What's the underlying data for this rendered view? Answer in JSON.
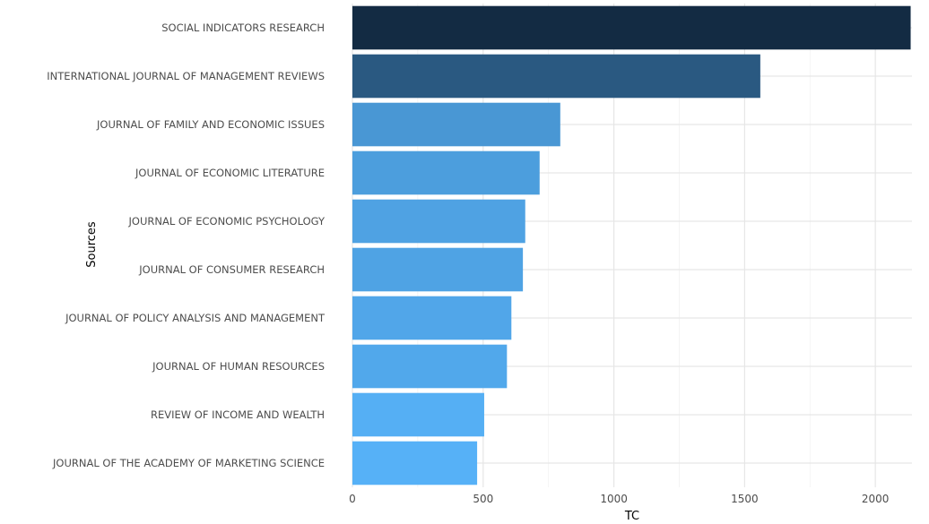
{
  "chart_data": {
    "type": "bar",
    "orientation": "horizontal",
    "xlabel": "TC",
    "ylabel": "Sources",
    "xlim": [
      0,
      2140
    ],
    "x_ticks": [
      0,
      500,
      1000,
      1500,
      2000
    ],
    "x_tick_labels": [
      "0",
      "500",
      "1000",
      "1500",
      "2000"
    ],
    "grid": true,
    "legend": "none",
    "color_scale": {
      "low": "#56b1f7",
      "high": "#132b43"
    },
    "categories": [
      "SOCIAL INDICATORS RESEARCH",
      "INTERNATIONAL JOURNAL OF MANAGEMENT REVIEWS",
      "JOURNAL OF FAMILY AND ECONOMIC ISSUES",
      "JOURNAL OF ECONOMIC LITERATURE",
      "JOURNAL OF ECONOMIC PSYCHOLOGY",
      "JOURNAL OF CONSUMER RESEARCH",
      "JOURNAL OF POLICY ANALYSIS AND MANAGEMENT",
      "JOURNAL OF HUMAN RESOURCES",
      "REVIEW OF INCOME AND WEALTH",
      "JOURNAL OF THE ACADEMY OF MARKETING SCIENCE"
    ],
    "values": [
      2135,
      1560,
      795,
      716,
      661,
      652,
      608,
      591,
      504,
      477
    ]
  }
}
